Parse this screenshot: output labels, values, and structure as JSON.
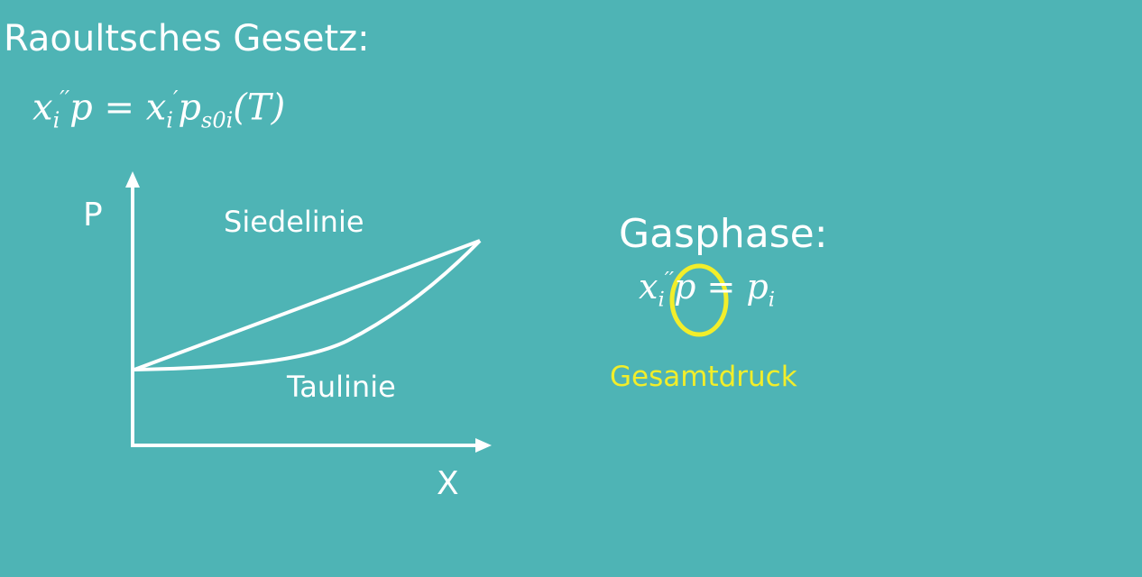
{
  "title": "Raoultsches Gesetz:",
  "raoult_formula": {
    "lhs_var": "x",
    "lhs_sub": "i",
    "lhs_sup": "′′",
    "lhs_p": "p",
    "equals": " = ",
    "rhs_var": "x",
    "rhs_sub": "i",
    "rhs_sup": "′",
    "rhs_p": "p",
    "rhs_p_sub": "s0i",
    "rhs_arg": "(T)"
  },
  "diagram": {
    "y_axis_label": "P",
    "x_axis_label": "X",
    "upper_curve_label": "Siedelinie",
    "lower_curve_label": "Taulinie",
    "line_color": "#ffffff"
  },
  "gas_phase": {
    "title": "Gasphase:",
    "formula_var": "x",
    "formula_sub": "i",
    "formula_sup": "′′",
    "formula_p": "p",
    "equals": " = ",
    "rhs_p": "p",
    "rhs_sub": "i",
    "highlight_label": "Gesamtdruck",
    "highlight_color": "#f2ee2a"
  },
  "colors": {
    "background": "#4eb4b5",
    "text": "#ffffff",
    "highlight": "#f2ee2a"
  }
}
